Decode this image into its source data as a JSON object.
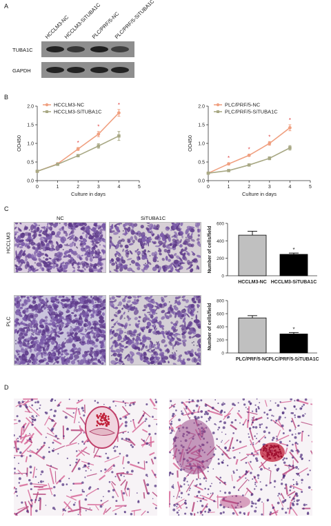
{
  "panels": {
    "a": "A",
    "b": "B",
    "c": "C",
    "d": "D"
  },
  "blot": {
    "lanes": [
      "HCCLM3-NC",
      "HCCLM3-SiTUBA1C",
      "PLC/PRF/5-NC",
      "PLC/PRF/5-SiTUBA1C"
    ],
    "rows": [
      "TUBA1C",
      "GAPDH"
    ],
    "band_intensity": {
      "TUBA1C": [
        0.85,
        0.55,
        0.9,
        0.45
      ],
      "GAPDH": [
        0.85,
        0.85,
        0.85,
        0.85
      ]
    }
  },
  "colors": {
    "nc": "#f0a080",
    "si": "#a8a884",
    "bar_nc": "#c0c0c0",
    "bar_si": "#000000",
    "star": "#e04040"
  },
  "chart_data": [
    {
      "type": "line",
      "xlabel": "Culture in days",
      "ylabel": "OD450",
      "x": [
        0,
        1,
        2,
        3,
        4
      ],
      "xlim": [
        0,
        5
      ],
      "ylim": [
        0,
        2.0
      ],
      "xticks": [
        "0",
        "1",
        "2",
        "3",
        "4",
        "5"
      ],
      "yticks": [
        "0.0",
        "0.5",
        "1.0",
        "1.5",
        "2.0"
      ],
      "legend": "top-left",
      "series": [
        {
          "name": "HCCLM3-NC",
          "values": [
            0.25,
            0.45,
            0.85,
            1.25,
            1.82
          ],
          "err": [
            0.02,
            0.03,
            0.04,
            0.07,
            0.09
          ]
        },
        {
          "name": "HCCLM3-SiTUBA1C",
          "values": [
            0.25,
            0.44,
            0.67,
            0.93,
            1.2
          ],
          "err": [
            0.02,
            0.02,
            0.03,
            0.06,
            0.12
          ]
        }
      ],
      "significance": [
        "",
        "",
        "*",
        "*",
        "*"
      ]
    },
    {
      "type": "line",
      "xlabel": "Culture in days",
      "ylabel": "OD450",
      "x": [
        0,
        1,
        2,
        3,
        4
      ],
      "xlim": [
        0,
        5
      ],
      "ylim": [
        0,
        2.0
      ],
      "xticks": [
        "0",
        "1",
        "2",
        "3",
        "4",
        "5"
      ],
      "yticks": [
        "0.0",
        "0.5",
        "1.0",
        "1.5",
        "2.0"
      ],
      "legend": "top-left",
      "series": [
        {
          "name": "PLC/PRF/5-NC",
          "values": [
            0.2,
            0.45,
            0.68,
            1.0,
            1.42
          ],
          "err": [
            0.02,
            0.03,
            0.03,
            0.05,
            0.08
          ]
        },
        {
          "name": "PLC/PRF/5-SiTUBA1C",
          "values": [
            0.2,
            0.27,
            0.42,
            0.6,
            0.88
          ],
          "err": [
            0.02,
            0.02,
            0.03,
            0.04,
            0.06
          ]
        }
      ],
      "significance": [
        "",
        "*",
        "*",
        "*",
        "*"
      ]
    },
    {
      "type": "bar",
      "ylabel": "Number of cells/field",
      "categories": [
        "HCCLM3-NC",
        "HCCLM3-SiTUBA1C"
      ],
      "values": [
        465,
        245
      ],
      "err": [
        45,
        15
      ],
      "ylim": [
        0,
        600
      ],
      "yticks": [
        "0",
        "200",
        "400",
        "600"
      ],
      "significance": [
        "",
        "*"
      ]
    },
    {
      "type": "bar",
      "ylabel": "Number of cells/field",
      "categories": [
        "PLC/PRF/5-NC",
        "PLC/PRF/5-SiTUBA1C"
      ],
      "values": [
        535,
        290
      ],
      "err": [
        35,
        22
      ],
      "ylim": [
        0,
        800
      ],
      "yticks": [
        "0",
        "200",
        "400",
        "600",
        "800"
      ],
      "significance": [
        "",
        "*"
      ]
    }
  ],
  "transwell": {
    "columns": [
      "NC",
      "SiTUBA1C"
    ],
    "rows": [
      "HCCLM3",
      "PLC"
    ]
  }
}
